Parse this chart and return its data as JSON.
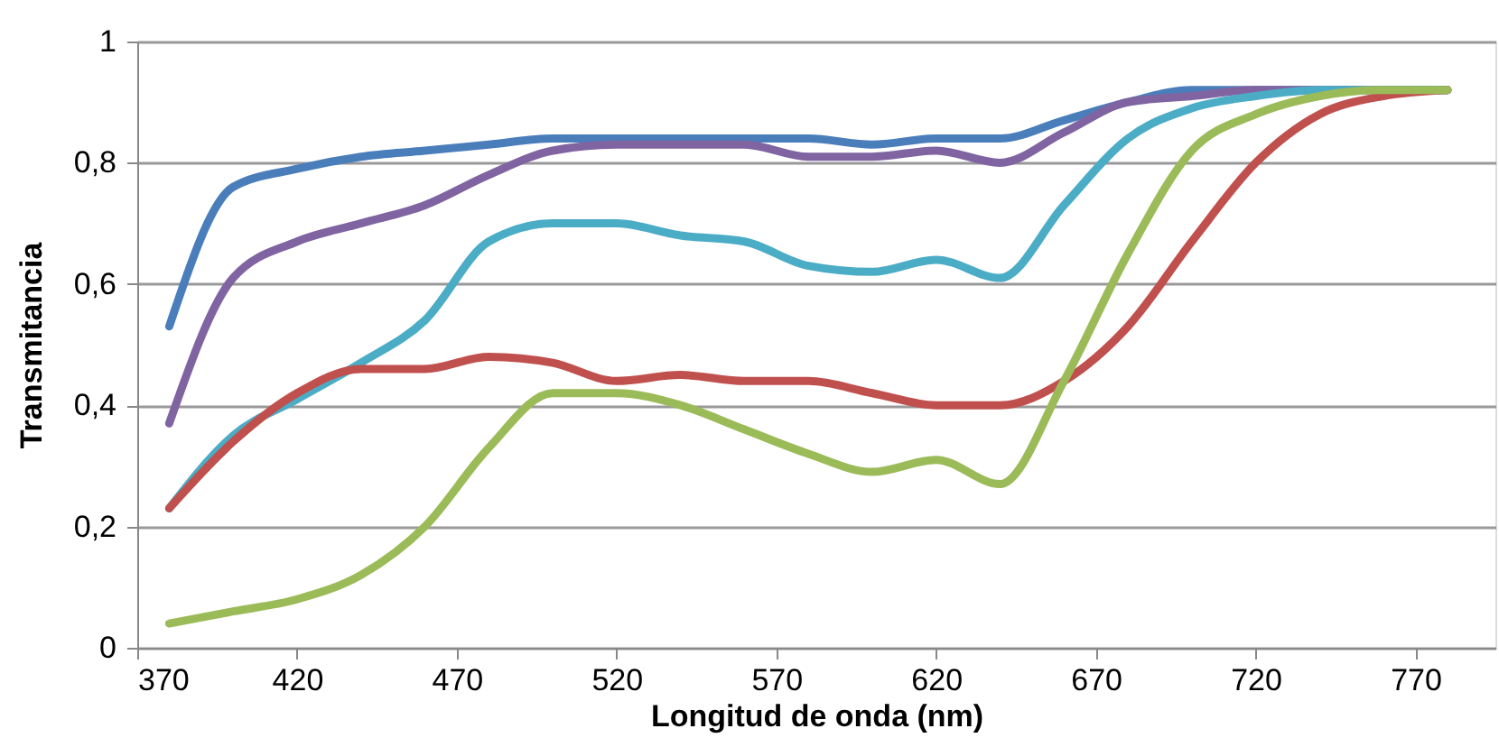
{
  "chart_data": {
    "type": "line",
    "xlabel": "Longitud de onda (nm)",
    "ylabel": "Transmitancia",
    "x": [
      380,
      400,
      420,
      440,
      460,
      480,
      500,
      520,
      540,
      560,
      580,
      600,
      620,
      640,
      660,
      680,
      700,
      720,
      740,
      760,
      780
    ],
    "series": [
      {
        "color": "#4a7ebb",
        "values": [
          0.53,
          0.76,
          0.79,
          0.81,
          0.82,
          0.83,
          0.84,
          0.84,
          0.84,
          0.84,
          0.84,
          0.83,
          0.84,
          0.84,
          0.87,
          0.9,
          0.92,
          0.92,
          0.92,
          0.92,
          0.92
        ]
      },
      {
        "color": "#8064a2",
        "values": [
          0.37,
          0.61,
          0.67,
          0.7,
          0.73,
          0.78,
          0.82,
          0.83,
          0.83,
          0.83,
          0.81,
          0.81,
          0.82,
          0.8,
          0.85,
          0.9,
          0.91,
          0.92,
          0.92,
          0.92,
          0.92
        ]
      },
      {
        "color": "#4bacc6",
        "values": [
          0.23,
          0.35,
          0.41,
          0.47,
          0.54,
          0.67,
          0.7,
          0.7,
          0.68,
          0.67,
          0.63,
          0.62,
          0.64,
          0.61,
          0.73,
          0.84,
          0.89,
          0.91,
          0.92,
          0.92,
          0.92
        ]
      },
      {
        "color": "#c0504d",
        "values": [
          0.23,
          0.34,
          0.42,
          0.46,
          0.46,
          0.48,
          0.47,
          0.44,
          0.45,
          0.44,
          0.44,
          0.42,
          0.4,
          0.4,
          0.44,
          0.53,
          0.67,
          0.8,
          0.88,
          0.91,
          0.92
        ]
      },
      {
        "color": "#9bbb59",
        "values": [
          0.04,
          0.06,
          0.08,
          0.12,
          0.2,
          0.33,
          0.42,
          0.42,
          0.4,
          0.36,
          0.32,
          0.29,
          0.31,
          0.27,
          0.44,
          0.65,
          0.82,
          0.88,
          0.91,
          0.92,
          0.92
        ]
      }
    ],
    "xlim": [
      370,
      795
    ],
    "xticks": [
      370,
      420,
      470,
      520,
      570,
      620,
      670,
      720,
      770
    ],
    "ylim": [
      0,
      1
    ],
    "yticks": [
      0,
      {
        "value": 0.2,
        "label": "0,2"
      },
      {
        "value": 0.4,
        "label": "0,4"
      },
      {
        "value": 0.6,
        "label": "0,6"
      },
      {
        "value": 0.8,
        "label": "0,8"
      },
      1
    ],
    "grid": "y",
    "legend": false,
    "marker": "none",
    "line_style": "solid"
  }
}
